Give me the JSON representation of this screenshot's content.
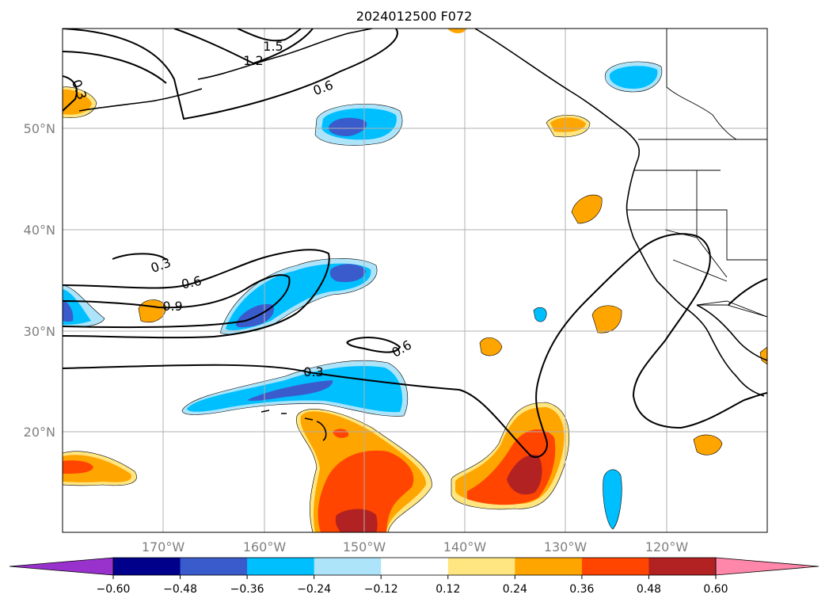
{
  "title": "2024012500 F072",
  "map": {
    "lon_range": [
      -180,
      -110
    ],
    "lat_range": [
      10,
      60
    ],
    "lat_ticks": [
      {
        "value": 20,
        "label": "20°N"
      },
      {
        "value": 30,
        "label": "30°N"
      },
      {
        "value": 40,
        "label": "40°N"
      },
      {
        "value": 50,
        "label": "50°N"
      }
    ],
    "lon_ticks": [
      {
        "value": -170,
        "label": "170°W"
      },
      {
        "value": -160,
        "label": "160°W"
      },
      {
        "value": -150,
        "label": "150°W"
      },
      {
        "value": -140,
        "label": "140°W"
      },
      {
        "value": -130,
        "label": "130°W"
      },
      {
        "value": -120,
        "label": "120°W"
      }
    ],
    "grid": true,
    "contour_labels": [
      "1.5",
      "1.2",
      "0.6",
      "0.3",
      "0.3",
      "0.6",
      "0.9",
      "0.6",
      "0.3"
    ]
  },
  "colorbar": {
    "orientation": "horizontal",
    "extend": "both",
    "boundaries": [
      -0.6,
      -0.48,
      -0.36,
      -0.24,
      -0.12,
      0.12,
      0.24,
      0.36,
      0.48,
      0.6
    ],
    "tick_labels": [
      "−0.60",
      "−0.48",
      "−0.36",
      "−0.24",
      "−0.12",
      "0.12",
      "0.24",
      "0.36",
      "0.48",
      "0.60"
    ],
    "colors": {
      "under": "#9932cc",
      "bins": [
        "#00008b",
        "#3a5bcc",
        "#00bfff",
        "#ade4fa",
        "#ffffff",
        "#ffe680",
        "#ffa500",
        "#ff4500",
        "#b22222"
      ],
      "over": "#ff88aa"
    }
  }
}
